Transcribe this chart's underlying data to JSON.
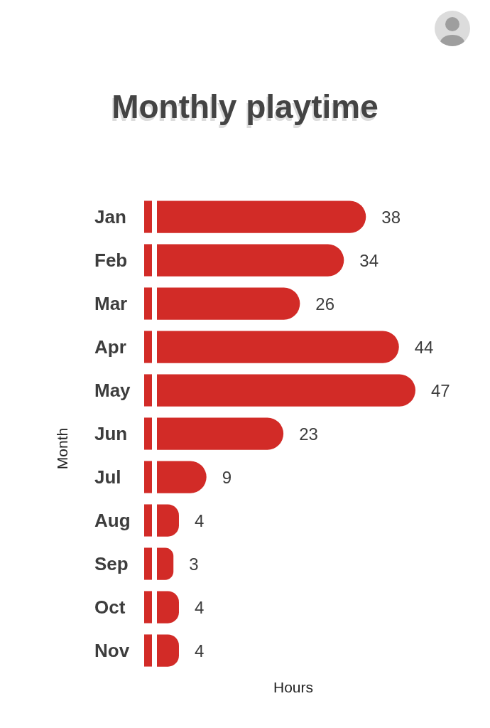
{
  "chart_data": {
    "type": "bar",
    "orientation": "horizontal",
    "title": "Monthly playtime",
    "xlabel": "Hours",
    "ylabel": "Month",
    "categories": [
      "Jan",
      "Feb",
      "Mar",
      "Apr",
      "May",
      "Jun",
      "Jul",
      "Aug",
      "Sep",
      "Oct",
      "Nov"
    ],
    "values": [
      38,
      34,
      26,
      44,
      47,
      23,
      9,
      4,
      3,
      4,
      4
    ],
    "color": "#d22b27",
    "data_labels": true,
    "tick_labels": "y"
  }
}
